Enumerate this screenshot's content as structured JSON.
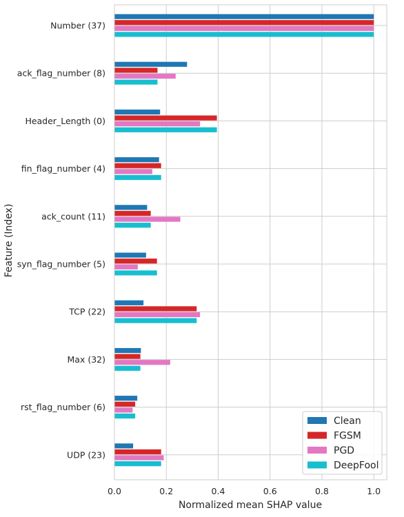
{
  "chart_data": {
    "type": "bar",
    "orientation": "horizontal",
    "categories": [
      "Number (37)",
      "ack_flag_number (8)",
      "Header_Length (0)",
      "fin_flag_number (4)",
      "ack_count (11)",
      "syn_flag_number (5)",
      "TCP (22)",
      "Max (32)",
      "rst_flag_number (6)",
      "UDP (23)"
    ],
    "series": [
      {
        "name": "Clean",
        "color": "#1f77b4",
        "values": [
          1.0,
          0.28,
          0.176,
          0.172,
          0.126,
          0.122,
          0.112,
          0.102,
          0.088,
          0.072
        ]
      },
      {
        "name": "FGSM",
        "color": "#d62728",
        "values": [
          1.0,
          0.166,
          0.395,
          0.18,
          0.14,
          0.164,
          0.317,
          0.1,
          0.08,
          0.18
        ]
      },
      {
        "name": "PGD",
        "color": "#e377c2",
        "values": [
          1.0,
          0.236,
          0.33,
          0.146,
          0.254,
          0.09,
          0.33,
          0.215,
          0.07,
          0.19
        ]
      },
      {
        "name": "DeepFool",
        "color": "#17becf",
        "values": [
          1.0,
          0.166,
          0.395,
          0.18,
          0.14,
          0.164,
          0.317,
          0.1,
          0.08,
          0.18
        ]
      }
    ],
    "xlabel": "Normalized mean SHAP value",
    "ylabel": "Feature (Index)",
    "xlim": [
      0.0,
      1.05
    ],
    "xticks": [
      0.0,
      0.2,
      0.4,
      0.6,
      0.8,
      1.0
    ],
    "xtick_labels": [
      "0.0",
      "0.2",
      "0.4",
      "0.6",
      "0.8",
      "1.0"
    ],
    "grid": true,
    "legend_position": "lower-right"
  }
}
